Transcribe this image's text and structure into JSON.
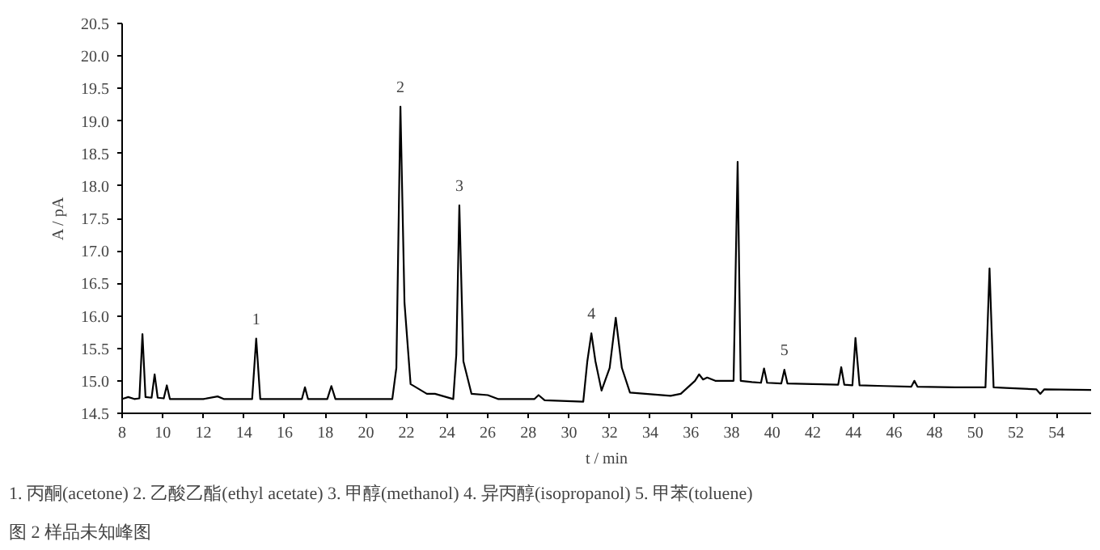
{
  "chart_data": {
    "type": "line",
    "xlabel": "t / min",
    "ylabel": "A / pA",
    "xlim": [
      8,
      55.7
    ],
    "ylim": [
      14.5,
      20.5
    ],
    "xticks": [
      8,
      10,
      12,
      14,
      16,
      18,
      20,
      22,
      24,
      26,
      28,
      30,
      32,
      34,
      36,
      38,
      40,
      42,
      44,
      46,
      48,
      50,
      52,
      54
    ],
    "yticks": [
      {
        "value": 14.5,
        "label": "14.5"
      },
      {
        "value": 15,
        "label": "15.0"
      },
      {
        "value": 15.5,
        "label": "15.5"
      },
      {
        "value": 16,
        "label": "16.0"
      },
      {
        "value": 16.5,
        "label": "16.5"
      },
      {
        "value": 17,
        "label": "17.0"
      },
      {
        "value": 17.5,
        "label": "17.5"
      },
      {
        "value": 18,
        "label": "18.0"
      },
      {
        "value": 18.5,
        "label": "18.5"
      },
      {
        "value": 19,
        "label": "19.0"
      },
      {
        "value": 19.5,
        "label": "19.5"
      },
      {
        "value": 20,
        "label": "20.0"
      },
      {
        "value": 20.5,
        "label": "20.5"
      }
    ],
    "marker": "none",
    "line_style": "solid",
    "series": [
      {
        "color": "#000000",
        "x": [
          8.0,
          8.3,
          8.6,
          8.85,
          9.0,
          9.15,
          9.45,
          9.6,
          9.75,
          10.05,
          10.2,
          10.35,
          12.0,
          12.7,
          13.0,
          14.4,
          14.6,
          14.8,
          16.85,
          17.0,
          17.15,
          18.1,
          18.3,
          18.5,
          21.3,
          21.5,
          21.7,
          21.9,
          22.2,
          23.0,
          23.4,
          24.3,
          24.45,
          24.6,
          24.8,
          25.2,
          26.0,
          26.5,
          28.3,
          28.5,
          28.8,
          30.7,
          30.9,
          31.1,
          31.3,
          31.6,
          32.0,
          32.3,
          32.6,
          33.0,
          35.0,
          35.5,
          36.2,
          36.4,
          36.6,
          36.8,
          37.2,
          38.1,
          38.3,
          38.45,
          39.0,
          39.45,
          39.6,
          39.75,
          40.45,
          40.6,
          40.75,
          42.0,
          43.25,
          43.4,
          43.55,
          43.95,
          44.1,
          44.3,
          45.5,
          46.85,
          47.0,
          47.15,
          49.0,
          50.5,
          50.7,
          50.9,
          51.5,
          53.0,
          53.2,
          53.4,
          55.7
        ],
        "values": [
          14.72,
          14.75,
          14.72,
          14.73,
          15.72,
          14.75,
          14.74,
          15.1,
          14.74,
          14.73,
          14.93,
          14.72,
          14.72,
          14.76,
          14.72,
          14.72,
          15.65,
          14.72,
          14.72,
          14.9,
          14.72,
          14.72,
          14.92,
          14.72,
          14.72,
          15.2,
          19.22,
          16.2,
          14.95,
          14.8,
          14.8,
          14.72,
          15.4,
          17.7,
          15.3,
          14.8,
          14.78,
          14.72,
          14.72,
          14.78,
          14.7,
          14.68,
          15.3,
          15.73,
          15.3,
          14.85,
          15.2,
          15.97,
          15.2,
          14.82,
          14.77,
          14.8,
          15.0,
          15.1,
          15.02,
          15.05,
          15.0,
          15.0,
          18.37,
          15.0,
          14.98,
          14.97,
          15.19,
          14.97,
          14.96,
          15.17,
          14.96,
          14.95,
          14.94,
          15.21,
          14.94,
          14.93,
          15.66,
          14.93,
          14.92,
          14.91,
          15.0,
          14.91,
          14.9,
          14.9,
          16.73,
          14.9,
          14.89,
          14.87,
          14.8,
          14.87,
          14.86
        ]
      }
    ],
    "annotations": [
      {
        "text": "1",
        "x": 14.6,
        "y": 15.65
      },
      {
        "text": "2",
        "x": 21.7,
        "y": 19.22
      },
      {
        "text": "3",
        "x": 24.6,
        "y": 17.7
      },
      {
        "text": "4",
        "x": 31.1,
        "y": 15.73
      },
      {
        "text": "5",
        "x": 40.6,
        "y": 15.17
      },
      "1. 丙酮(acetone)   2. 乙酸乙酯(ethyl acetate)   3. 甲醇(methanol)   4. 异丙醇(isopropanol)   5. 甲苯(toluene)",
      "图 2    样品未知峰图"
    ]
  }
}
